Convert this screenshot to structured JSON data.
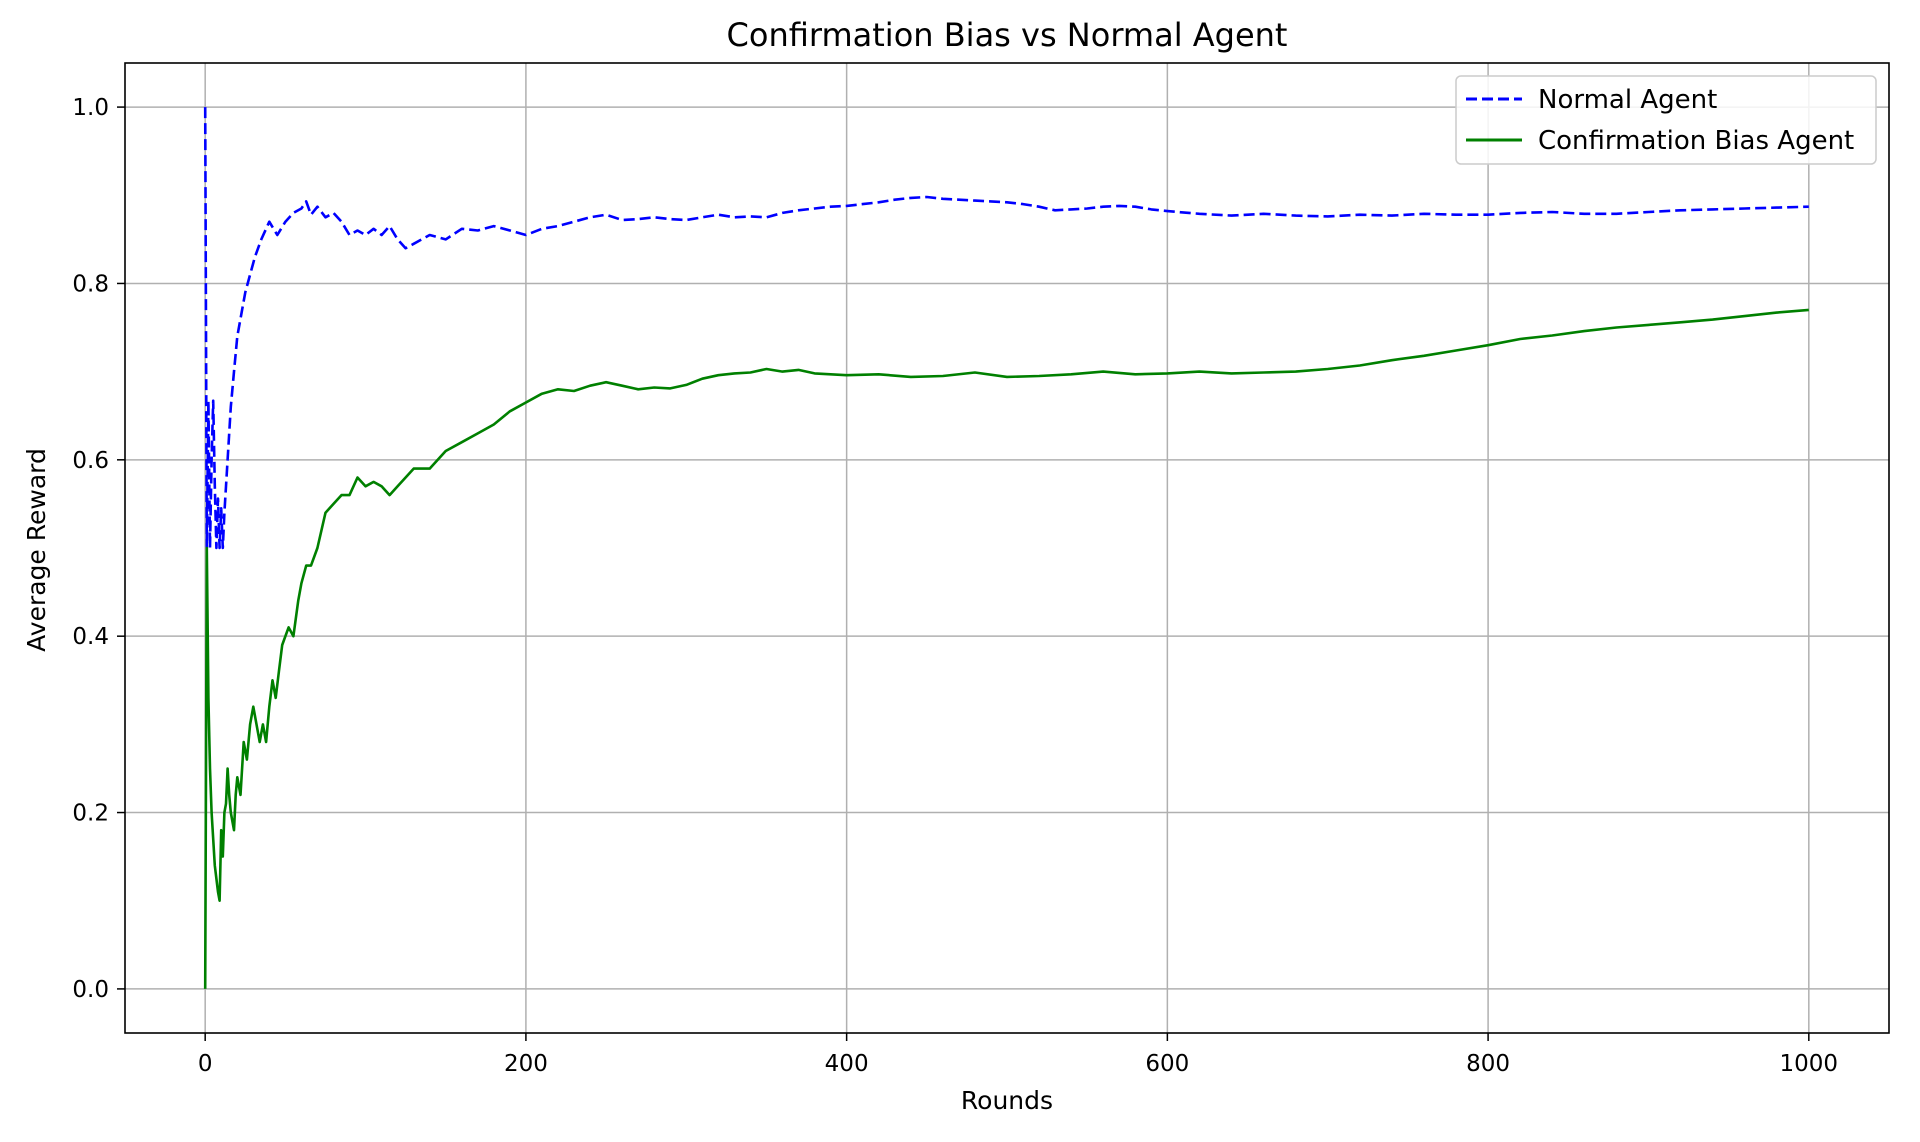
{
  "chart_data": {
    "type": "line",
    "title": "Confirmation Bias vs Normal Agent",
    "xlabel": "Rounds",
    "ylabel": "Average Reward",
    "xlim": [
      -50,
      1050
    ],
    "ylim": [
      -0.05,
      1.05
    ],
    "xticks": [
      0,
      200,
      400,
      600,
      800,
      1000
    ],
    "yticks": [
      0.0,
      0.2,
      0.4,
      0.6,
      0.8,
      1.0
    ],
    "xtick_labels": [
      "0",
      "200",
      "400",
      "600",
      "800",
      "1000"
    ],
    "ytick_labels": [
      "0.0",
      "0.2",
      "0.4",
      "0.6",
      "0.8",
      "1.0"
    ],
    "grid": true,
    "legend_position": "top-right",
    "series": [
      {
        "name": "Normal Agent",
        "color": "#0000ff",
        "style": "dashed",
        "x": [
          0,
          1,
          2,
          3,
          4,
          5,
          6,
          7,
          8,
          9,
          10,
          11,
          12,
          14,
          16,
          18,
          20,
          22,
          25,
          28,
          31,
          35,
          40,
          45,
          50,
          55,
          60,
          63,
          66,
          70,
          75,
          80,
          85,
          90,
          95,
          100,
          105,
          110,
          115,
          120,
          125,
          130,
          140,
          150,
          160,
          170,
          180,
          190,
          200,
          210,
          220,
          230,
          240,
          250,
          260,
          270,
          280,
          290,
          300,
          310,
          320,
          330,
          340,
          350,
          360,
          370,
          380,
          390,
          400,
          410,
          420,
          430,
          440,
          450,
          460,
          470,
          480,
          490,
          500,
          510,
          520,
          530,
          540,
          550,
          560,
          570,
          580,
          590,
          600,
          620,
          640,
          660,
          680,
          700,
          720,
          740,
          760,
          780,
          800,
          820,
          840,
          860,
          880,
          900,
          920,
          940,
          960,
          980,
          1000
        ],
        "y": [
          1.0,
          0.5,
          0.667,
          0.5,
          0.6,
          0.667,
          0.571,
          0.5,
          0.556,
          0.5,
          0.545,
          0.5,
          0.54,
          0.6,
          0.66,
          0.7,
          0.74,
          0.76,
          0.79,
          0.81,
          0.83,
          0.85,
          0.87,
          0.855,
          0.87,
          0.88,
          0.885,
          0.893,
          0.878,
          0.887,
          0.875,
          0.88,
          0.87,
          0.855,
          0.86,
          0.855,
          0.862,
          0.855,
          0.865,
          0.85,
          0.84,
          0.845,
          0.855,
          0.85,
          0.862,
          0.86,
          0.865,
          0.86,
          0.855,
          0.862,
          0.865,
          0.87,
          0.875,
          0.878,
          0.872,
          0.873,
          0.875,
          0.873,
          0.872,
          0.875,
          0.878,
          0.875,
          0.876,
          0.875,
          0.88,
          0.883,
          0.885,
          0.887,
          0.888,
          0.89,
          0.892,
          0.895,
          0.897,
          0.898,
          0.896,
          0.895,
          0.894,
          0.893,
          0.892,
          0.89,
          0.887,
          0.883,
          0.884,
          0.885,
          0.887,
          0.888,
          0.887,
          0.884,
          0.882,
          0.879,
          0.877,
          0.879,
          0.877,
          0.876,
          0.878,
          0.877,
          0.879,
          0.878,
          0.878,
          0.88,
          0.881,
          0.879,
          0.879,
          0.881,
          0.883,
          0.884,
          0.885,
          0.886,
          0.887
        ]
      },
      {
        "name": "Confirmation Bias Agent",
        "color": "#008000",
        "style": "solid",
        "x": [
          0,
          1,
          2,
          3,
          4,
          5,
          6,
          7,
          8,
          9,
          10,
          11,
          12,
          13,
          14,
          15,
          16,
          17,
          18,
          19,
          20,
          22,
          24,
          26,
          28,
          30,
          32,
          34,
          36,
          38,
          40,
          42,
          44,
          46,
          48,
          50,
          52,
          55,
          58,
          60,
          63,
          66,
          70,
          75,
          80,
          85,
          90,
          95,
          100,
          105,
          110,
          115,
          120,
          125,
          130,
          140,
          150,
          160,
          170,
          180,
          190,
          200,
          210,
          220,
          230,
          240,
          250,
          260,
          270,
          280,
          290,
          300,
          310,
          320,
          330,
          340,
          350,
          360,
          370,
          380,
          390,
          400,
          420,
          440,
          460,
          480,
          500,
          520,
          540,
          560,
          580,
          600,
          620,
          640,
          660,
          680,
          700,
          720,
          740,
          760,
          780,
          800,
          820,
          840,
          860,
          880,
          900,
          920,
          940,
          960,
          980,
          1000
        ],
        "y": [
          0.0,
          0.5,
          0.33,
          0.25,
          0.2,
          0.17,
          0.14,
          0.125,
          0.11,
          0.1,
          0.18,
          0.15,
          0.2,
          0.21,
          0.25,
          0.22,
          0.2,
          0.19,
          0.18,
          0.22,
          0.24,
          0.22,
          0.28,
          0.26,
          0.3,
          0.32,
          0.3,
          0.28,
          0.3,
          0.28,
          0.32,
          0.35,
          0.33,
          0.36,
          0.39,
          0.4,
          0.41,
          0.4,
          0.44,
          0.46,
          0.48,
          0.48,
          0.5,
          0.54,
          0.55,
          0.56,
          0.56,
          0.58,
          0.57,
          0.575,
          0.57,
          0.56,
          0.57,
          0.58,
          0.59,
          0.59,
          0.61,
          0.62,
          0.63,
          0.64,
          0.655,
          0.665,
          0.675,
          0.68,
          0.678,
          0.684,
          0.688,
          0.684,
          0.68,
          0.682,
          0.681,
          0.685,
          0.692,
          0.696,
          0.698,
          0.699,
          0.703,
          0.7,
          0.702,
          0.698,
          0.697,
          0.696,
          0.697,
          0.694,
          0.695,
          0.699,
          0.694,
          0.695,
          0.697,
          0.7,
          0.697,
          0.698,
          0.7,
          0.698,
          0.699,
          0.7,
          0.703,
          0.707,
          0.713,
          0.718,
          0.724,
          0.73,
          0.737,
          0.741,
          0.746,
          0.75,
          0.753,
          0.756,
          0.759,
          0.763,
          0.767,
          0.77
        ]
      }
    ]
  }
}
